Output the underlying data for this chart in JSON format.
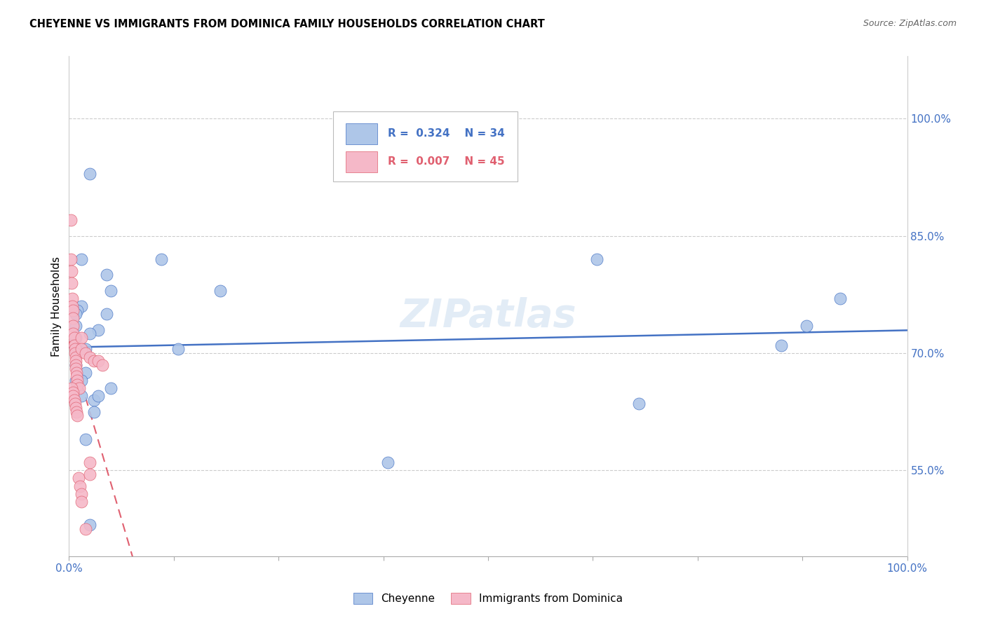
{
  "title": "CHEYENNE VS IMMIGRANTS FROM DOMINICA FAMILY HOUSEHOLDS CORRELATION CHART",
  "source": "Source: ZipAtlas.com",
  "ylabel": "Family Households",
  "xlim": [
    0,
    100
  ],
  "ylim": [
    44,
    108
  ],
  "yticks": [
    55.0,
    70.0,
    85.0,
    100.0
  ],
  "ytick_labels": [
    "55.0%",
    "70.0%",
    "85.0%",
    "100.0%"
  ],
  "cheyenne_color": "#aec6e8",
  "dominica_color": "#f5b8c8",
  "trendline_cheyenne_color": "#4472c4",
  "trendline_dominica_color": "#e06070",
  "watermark": "ZIPatlas",
  "cheyenne_x": [
    2.5,
    1.5,
    4.5,
    5.0,
    4.5,
    3.5,
    2.5,
    2.0,
    2.0,
    1.5,
    1.5,
    1.0,
    0.8,
    0.8,
    0.8,
    0.8,
    0.8,
    0.8,
    1.5,
    3.0,
    3.0,
    11.0,
    18.0,
    13.0,
    38.0,
    63.0,
    68.0,
    85.0,
    88.0,
    92.0,
    5.0,
    3.5,
    2.0,
    2.5
  ],
  "cheyenne_y": [
    93.0,
    82.0,
    80.0,
    78.0,
    75.0,
    73.0,
    72.5,
    70.5,
    67.5,
    66.5,
    76.0,
    75.5,
    75.0,
    73.5,
    72.0,
    70.5,
    68.5,
    66.5,
    64.5,
    64.0,
    62.5,
    82.0,
    78.0,
    70.5,
    56.0,
    82.0,
    63.5,
    71.0,
    73.5,
    77.0,
    65.5,
    64.5,
    59.0,
    48.0
  ],
  "dominica_x": [
    0.2,
    0.2,
    0.3,
    0.3,
    0.4,
    0.4,
    0.5,
    0.5,
    0.5,
    0.5,
    0.6,
    0.6,
    0.7,
    0.7,
    0.8,
    0.8,
    0.8,
    0.8,
    0.9,
    0.9,
    1.0,
    1.0,
    1.2,
    1.5,
    1.5,
    2.0,
    2.5,
    3.0,
    3.5,
    4.0,
    0.3,
    0.5,
    0.5,
    0.6,
    0.7,
    0.8,
    0.9,
    1.0,
    1.1,
    1.3,
    1.5,
    1.5,
    2.0,
    2.5,
    2.5
  ],
  "dominica_y": [
    87.0,
    82.0,
    80.5,
    79.0,
    77.0,
    76.0,
    75.5,
    74.5,
    73.5,
    72.5,
    72.0,
    71.0,
    70.5,
    70.0,
    69.5,
    69.0,
    68.5,
    68.0,
    67.5,
    67.0,
    66.5,
    66.0,
    65.5,
    72.0,
    70.5,
    70.0,
    69.5,
    69.0,
    69.0,
    68.5,
    65.5,
    65.0,
    64.5,
    64.0,
    63.5,
    63.0,
    62.5,
    62.0,
    54.0,
    53.0,
    52.0,
    51.0,
    47.5,
    56.0,
    54.5
  ]
}
